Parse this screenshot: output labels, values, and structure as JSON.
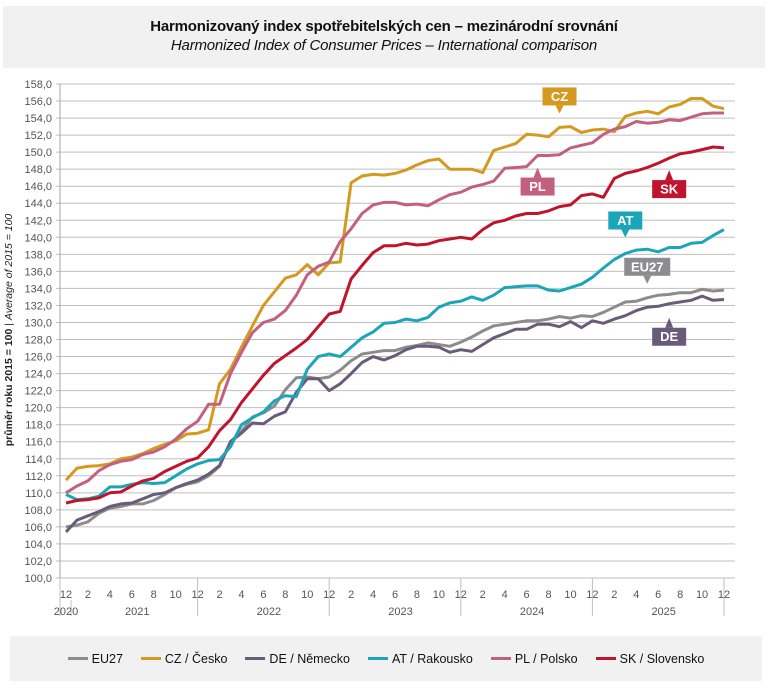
{
  "header": {
    "title": "Harmonizovaný index spotřebitelských cen – mezinárodní srovnání",
    "subtitle": "Harmonized Index of Consumer Prices – International comparison"
  },
  "chart_data": {
    "type": "line",
    "title": "Harmonizovaný index spotřebitelských cen – mezinárodní srovnání",
    "subtitle": "Harmonized Index of Consumer Prices – International comparison",
    "ylabel_bold": "průměr roku 2015 = 100",
    "ylabel_italic": "Average of 2015 = 100",
    "ylabel_separator": " | ",
    "xlabel": "",
    "ylim": [
      100,
      158
    ],
    "ytick_step": 2,
    "ytick_labels": [
      "100,0",
      "102,0",
      "104,0",
      "106,0",
      "108,0",
      "110,0",
      "112,0",
      "114,0",
      "116,0",
      "118,0",
      "120,0",
      "122,0",
      "124,0",
      "126,0",
      "128,0",
      "130,0",
      "132,0",
      "134,0",
      "136,0",
      "138,0",
      "140,0",
      "142,0",
      "144,0",
      "146,0",
      "148,0",
      "150,0",
      "152,0",
      "154,0",
      "156,0",
      "158,0"
    ],
    "grid": true,
    "x_start": "2020-12",
    "x_end": "2025-12",
    "x_month_ticks": [
      "12",
      "2",
      "4",
      "6",
      "8",
      "10",
      "12",
      "2",
      "4",
      "6",
      "8",
      "10",
      "12",
      "2",
      "4",
      "6",
      "8",
      "10",
      "12",
      "2",
      "4",
      "6",
      "8",
      "10",
      "12",
      "2",
      "4",
      "6",
      "8",
      "10",
      "12"
    ],
    "x_years": [
      "2020",
      "2021",
      "2022",
      "2023",
      "2024",
      "2025"
    ],
    "legend_position": "bottom",
    "series": [
      {
        "name": "EU27",
        "color": "#8c8c8e",
        "callout": "EU27",
        "values": [
          106.0,
          106.2,
          106.6,
          107.6,
          108.2,
          108.4,
          108.7,
          108.7,
          109.1,
          109.8,
          110.6,
          111.0,
          111.3,
          112.0,
          113.1,
          116.0,
          117.2,
          118.9,
          119.4,
          120.2,
          122.1,
          123.5,
          123.6,
          123.4,
          123.6,
          124.4,
          125.5,
          126.3,
          126.5,
          126.7,
          126.7,
          127.1,
          127.3,
          127.6,
          127.4,
          127.2,
          127.7,
          128.3,
          129.0,
          129.6,
          129.8,
          130.0,
          130.2,
          130.2,
          130.4,
          130.7,
          130.5,
          130.8,
          130.7,
          131.2,
          131.8,
          132.4,
          132.5,
          132.9,
          133.2,
          133.3,
          133.5,
          133.5,
          133.9,
          133.7,
          133.8
        ]
      },
      {
        "name": "CZ / Česko",
        "color": "#d49a1f",
        "callout": "CZ",
        "values": [
          111.5,
          112.9,
          113.1,
          113.2,
          113.4,
          114.0,
          114.2,
          114.6,
          115.2,
          115.7,
          116.1,
          116.9,
          117.0,
          117.4,
          122.8,
          124.5,
          127.1,
          129.6,
          132.0,
          133.6,
          135.2,
          135.6,
          136.8,
          135.6,
          137.0,
          137.1,
          146.4,
          147.2,
          147.4,
          147.3,
          147.5,
          147.9,
          148.5,
          149.0,
          149.2,
          148.0,
          148.0,
          148.0,
          147.6,
          150.2,
          150.6,
          151.0,
          152.1,
          152.0,
          151.8,
          152.9,
          153.0,
          152.3,
          152.6,
          152.7,
          152.4,
          154.2,
          154.6,
          154.8,
          154.5,
          155.3,
          155.6,
          156.3,
          156.3,
          155.4,
          155.1
        ]
      },
      {
        "name": "DE / Německo",
        "color": "#6b5b7b",
        "callout": "DE",
        "values": [
          105.4,
          106.8,
          107.3,
          107.8,
          108.4,
          108.7,
          108.8,
          109.3,
          109.8,
          110.0,
          110.6,
          111.1,
          111.5,
          112.2,
          113.2,
          116.0,
          117.0,
          118.2,
          118.1,
          119.0,
          119.5,
          121.8,
          123.4,
          123.4,
          122.0,
          122.8,
          124.0,
          125.3,
          126.0,
          125.6,
          126.1,
          126.8,
          127.2,
          127.2,
          127.1,
          126.5,
          126.8,
          126.6,
          127.4,
          128.2,
          128.7,
          129.2,
          129.2,
          129.8,
          129.8,
          129.5,
          130.1,
          129.4,
          130.2,
          129.9,
          130.4,
          130.8,
          131.4,
          131.8,
          131.9,
          132.2,
          132.4,
          132.6,
          133.1,
          132.6,
          132.7
        ]
      },
      {
        "name": "AT / Rakousko",
        "color": "#1aa5b8",
        "callout": "AT",
        "values": [
          109.8,
          109.2,
          109.3,
          109.6,
          110.7,
          110.7,
          111.0,
          111.2,
          111.1,
          111.2,
          112.0,
          112.8,
          113.4,
          113.8,
          113.9,
          115.4,
          118.0,
          118.8,
          119.5,
          120.8,
          121.4,
          121.3,
          124.5,
          126.0,
          126.3,
          126.0,
          127.1,
          128.2,
          128.9,
          129.9,
          130.0,
          130.4,
          130.2,
          130.6,
          131.8,
          132.3,
          132.5,
          133.0,
          132.6,
          133.2,
          134.1,
          134.2,
          134.3,
          134.3,
          133.8,
          133.7,
          134.1,
          134.5,
          135.3,
          136.4,
          137.4,
          138.1,
          138.5,
          138.6,
          138.3,
          138.8,
          138.8,
          139.3,
          139.4,
          140.2,
          140.9
        ]
      },
      {
        "name": "PL / Polsko",
        "color": "#c4607f",
        "callout": "PL",
        "values": [
          110.0,
          110.8,
          111.4,
          112.6,
          113.3,
          113.7,
          113.9,
          114.5,
          114.8,
          115.4,
          116.3,
          117.5,
          118.4,
          120.4,
          120.4,
          124.0,
          126.5,
          128.8,
          130.0,
          130.4,
          131.4,
          133.2,
          135.6,
          136.6,
          137.1,
          139.5,
          141.0,
          142.8,
          143.8,
          144.1,
          144.1,
          143.8,
          143.9,
          143.7,
          144.4,
          145.0,
          145.3,
          145.9,
          146.2,
          146.6,
          148.1,
          148.2,
          148.3,
          149.6,
          149.6,
          149.7,
          150.5,
          150.8,
          151.1,
          152.1,
          152.7,
          153.0,
          153.6,
          153.4,
          153.5,
          153.8,
          153.7,
          154.1,
          154.5,
          154.6,
          154.6
        ]
      },
      {
        "name": "SK / Slovensko",
        "color": "#c0142c",
        "callout": "SK",
        "values": [
          108.8,
          109.1,
          109.2,
          109.4,
          110.0,
          110.1,
          110.8,
          111.4,
          111.7,
          112.5,
          113.1,
          113.7,
          114.1,
          115.4,
          117.3,
          118.6,
          120.6,
          122.2,
          123.8,
          125.2,
          126.1,
          127.0,
          128.0,
          129.5,
          131.0,
          131.3,
          135.1,
          136.7,
          138.2,
          139.0,
          139.0,
          139.3,
          139.1,
          139.2,
          139.6,
          139.8,
          140.0,
          139.8,
          140.9,
          141.7,
          142.0,
          142.5,
          142.8,
          142.8,
          143.1,
          143.6,
          143.8,
          144.9,
          145.1,
          144.7,
          146.9,
          147.5,
          147.8,
          148.2,
          148.7,
          149.3,
          149.8,
          150.0,
          150.3,
          150.6,
          150.5
        ]
      }
    ]
  }
}
